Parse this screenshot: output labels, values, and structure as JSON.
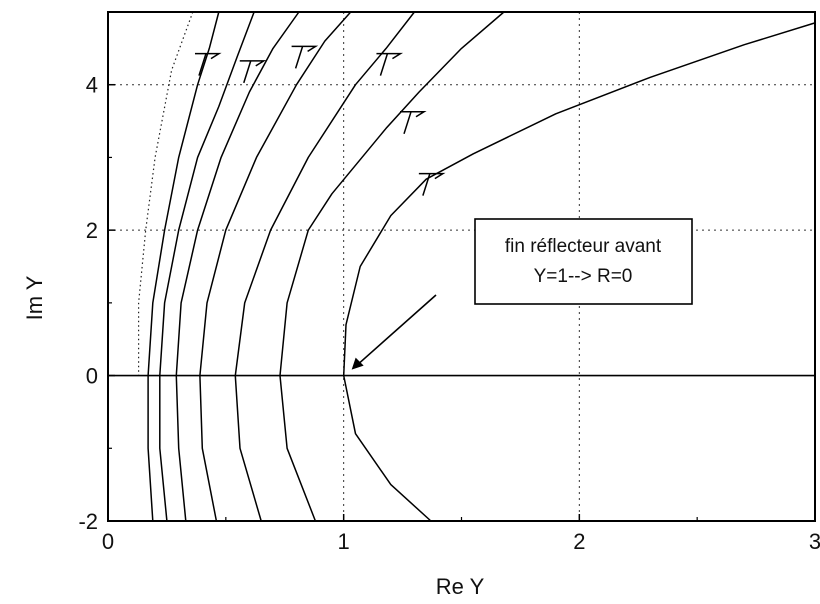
{
  "chart_data": {
    "type": "line",
    "title": "",
    "xlabel": "Re Y",
    "ylabel": "Im Y",
    "xlim": [
      0,
      3
    ],
    "ylim": [
      -2,
      5
    ],
    "x_ticks": [
      0,
      1,
      2,
      3
    ],
    "x_tick_labels": [
      "0",
      "1",
      "2",
      "3"
    ],
    "y_ticks": [
      -2,
      0,
      2,
      4
    ],
    "y_tick_labels": [
      "-2",
      "0",
      "2",
      "4"
    ],
    "grid": "dotted",
    "annotation": {
      "lines": [
        "fin réflecteur avant",
        "Y=1--> R=0"
      ],
      "arrow_to": [
        1.0,
        0
      ]
    },
    "series": [
      {
        "points": [
          [
            0.47,
            5.0
          ],
          [
            0.43,
            4.5
          ],
          [
            0.38,
            4.0
          ],
          [
            0.3,
            3.0
          ],
          [
            0.24,
            2.0
          ],
          [
            0.19,
            1.0
          ],
          [
            0.17,
            0.0
          ],
          [
            0.17,
            -1.0
          ],
          [
            0.19,
            -2.0
          ]
        ]
      },
      {
        "points": [
          [
            0.62,
            5.0
          ],
          [
            0.55,
            4.4
          ],
          [
            0.47,
            3.7
          ],
          [
            0.38,
            3.0
          ],
          [
            0.3,
            2.0
          ],
          [
            0.24,
            1.0
          ],
          [
            0.22,
            0.0
          ],
          [
            0.22,
            -1.0
          ],
          [
            0.25,
            -2.0
          ]
        ]
      },
      {
        "points": [
          [
            0.81,
            5.0
          ],
          [
            0.7,
            4.5
          ],
          [
            0.6,
            3.9
          ],
          [
            0.48,
            3.0
          ],
          [
            0.38,
            2.0
          ],
          [
            0.31,
            1.0
          ],
          [
            0.29,
            0.0
          ],
          [
            0.3,
            -1.0
          ],
          [
            0.33,
            -2.0
          ]
        ]
      },
      {
        "points": [
          [
            1.03,
            5.0
          ],
          [
            0.92,
            4.6
          ],
          [
            0.8,
            4.0
          ],
          [
            0.63,
            3.0
          ],
          [
            0.5,
            2.0
          ],
          [
            0.42,
            1.0
          ],
          [
            0.39,
            0.0
          ],
          [
            0.4,
            -1.0
          ],
          [
            0.46,
            -2.0
          ]
        ]
      },
      {
        "points": [
          [
            1.3,
            5.0
          ],
          [
            1.18,
            4.5
          ],
          [
            1.05,
            4.0
          ],
          [
            0.85,
            3.0
          ],
          [
            0.69,
            2.0
          ],
          [
            0.58,
            1.0
          ],
          [
            0.54,
            0.0
          ],
          [
            0.56,
            -1.0
          ],
          [
            0.65,
            -2.0
          ]
        ]
      },
      {
        "points": [
          [
            1.68,
            5.0
          ],
          [
            1.5,
            4.5
          ],
          [
            1.32,
            3.9
          ],
          [
            1.18,
            3.4
          ],
          [
            0.95,
            2.5
          ],
          [
            0.85,
            2.0
          ],
          [
            0.76,
            1.0
          ],
          [
            0.73,
            0.0
          ],
          [
            0.76,
            -1.0
          ],
          [
            0.88,
            -2.0
          ]
        ]
      },
      {
        "points": [
          [
            3.0,
            4.85
          ],
          [
            2.7,
            4.55
          ],
          [
            2.3,
            4.1
          ],
          [
            1.9,
            3.6
          ],
          [
            1.55,
            3.05
          ],
          [
            1.35,
            2.7
          ],
          [
            1.2,
            2.2
          ],
          [
            1.07,
            1.5
          ],
          [
            1.01,
            0.7
          ],
          [
            1.0,
            0.0
          ],
          [
            1.05,
            -0.8
          ],
          [
            1.2,
            -1.5
          ],
          [
            1.37,
            -2.0
          ]
        ]
      }
    ],
    "dotted_curve": {
      "points": [
        [
          0.36,
          5.0
        ],
        [
          0.27,
          4.2
        ],
        [
          0.2,
          3.0
        ],
        [
          0.16,
          2.0
        ],
        [
          0.13,
          1.0
        ],
        [
          0.13,
          0.0
        ]
      ]
    },
    "direction_markers": [
      {
        "x": 0.42,
        "y": 4.4
      },
      {
        "x": 0.61,
        "y": 4.3
      },
      {
        "x": 0.83,
        "y": 4.5
      },
      {
        "x": 1.19,
        "y": 4.4
      },
      {
        "x": 1.29,
        "y": 3.6
      },
      {
        "x": 1.37,
        "y": 2.75
      }
    ]
  }
}
